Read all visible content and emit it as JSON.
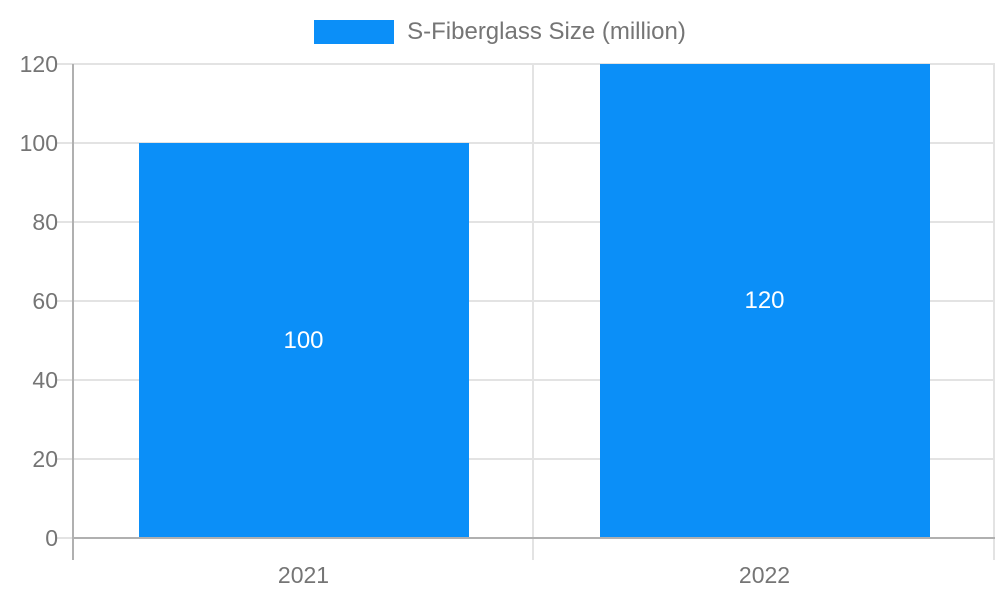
{
  "colors": {
    "bar": "#0B8FF8",
    "grid": "#e3e3e3",
    "axis": "#b0b0b0",
    "text": "#757575",
    "data_label": "#ffffff",
    "background": "#ffffff"
  },
  "chart_data": {
    "type": "bar",
    "legend": {
      "label": "S-Fiberglass Size (million)",
      "position": "top"
    },
    "categories": [
      "2021",
      "2022"
    ],
    "series": [
      {
        "name": "S-Fiberglass Size (million)",
        "values": [
          100,
          120
        ]
      }
    ],
    "data_labels": [
      "100",
      "120"
    ],
    "yticks": [
      0,
      20,
      40,
      60,
      80,
      100,
      120
    ],
    "ylim": [
      0,
      120
    ],
    "xlabel": "",
    "ylabel": "",
    "grid": true
  }
}
